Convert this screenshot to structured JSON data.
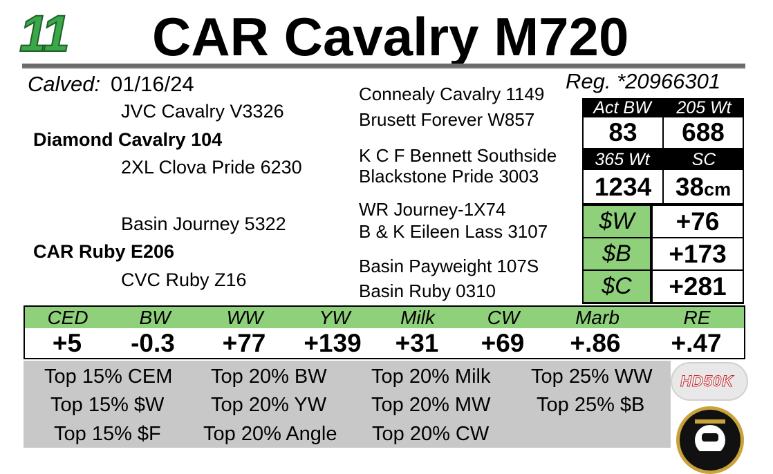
{
  "header": {
    "lot_number": "11",
    "name": "CAR Cavalry M720"
  },
  "info": {
    "calved_label": "Calved:",
    "calved_date": "01/16/24",
    "registration": "Reg. *20966301"
  },
  "pedigree": {
    "sire_sire": "JVC Cavalry V3326",
    "sire": "Diamond Cavalry 104",
    "sire_dam": "2XL Clova Pride 6230",
    "dam_sire": "Basin Journey 5322",
    "dam": "CAR Ruby E206",
    "dam_dam": "CVC Ruby Z16",
    "ancestors": [
      "Connealy Cavalry 1149",
      "Brusett Forever W857",
      "K C F Bennett Southside",
      "Blackstone Pride 3003",
      "WR Journey-1X74",
      "B & K Eileen Lass 3107",
      "Basin Payweight 107S",
      "Basin Ruby 0310"
    ]
  },
  "stats": {
    "act_bw_label": "Act BW",
    "act_bw": "83",
    "wt205_label": "205 Wt",
    "wt205": "688",
    "wt365_label": "365 Wt",
    "wt365": "1234",
    "sc_label": "SC",
    "sc": "38",
    "sc_unit": "cm"
  },
  "indexes": [
    {
      "label": "$W",
      "value": "+76"
    },
    {
      "label": "$B",
      "value": "+173"
    },
    {
      "label": "$C",
      "value": "+281"
    }
  ],
  "epds": [
    {
      "label": "CED",
      "value": "+5"
    },
    {
      "label": "BW",
      "value": "-0.3"
    },
    {
      "label": "WW",
      "value": "+77"
    },
    {
      "label": "YW",
      "value": "+139"
    },
    {
      "label": "Milk",
      "value": "+31"
    },
    {
      "label": "CW",
      "value": "+69"
    },
    {
      "label": "Marb",
      "value": "+.86"
    },
    {
      "label": "RE",
      "value": "+.47"
    }
  ],
  "rankings": [
    "Top 15% CEM",
    "Top 20% BW",
    "Top 20% Milk",
    "Top 25% WW",
    "Top 15% $W",
    "Top 20% YW",
    "Top 20% MW",
    "Top 25% $B",
    "Top 15% $F",
    "Top 20% Angle",
    "Top 20% CW"
  ],
  "logos": {
    "hd50k": "HD50K"
  },
  "colors": {
    "accent_green": "#8fd07a",
    "lot_green": "#3aa84a"
  }
}
